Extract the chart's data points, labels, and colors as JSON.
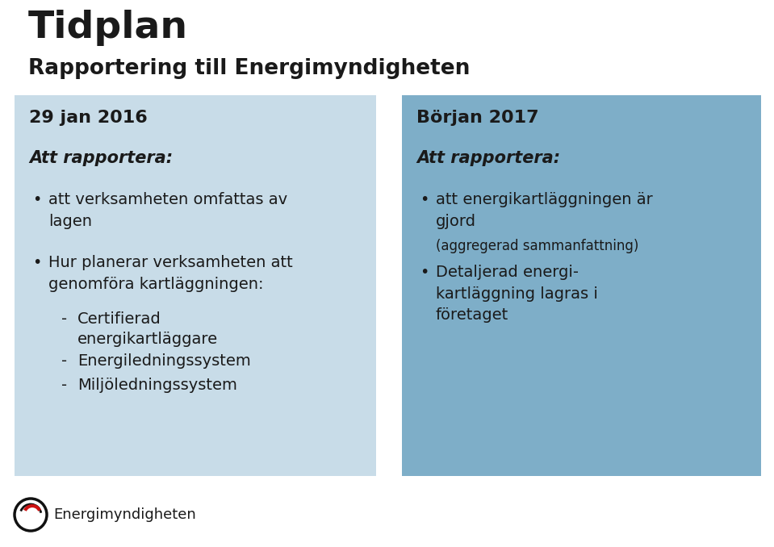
{
  "title": "Tidplan",
  "subtitle": "Rapportering till Energimyndigheten",
  "bg_color": "#ffffff",
  "left_box_color": "#c8dce8",
  "right_box_color": "#7eaec8",
  "left_box_header": "29 jan 2016",
  "right_box_header": "Början 2017",
  "left_subheader": "Att rapportera:",
  "right_subheader": "Att rapportera:",
  "logo_text": "Energimyndigheten",
  "text_color": "#1a1a1a",
  "title_fontsize": 34,
  "subtitle_fontsize": 19,
  "header_fontsize": 16,
  "subheader_fontsize": 15,
  "body_fontsize": 14,
  "small_fontsize": 12
}
